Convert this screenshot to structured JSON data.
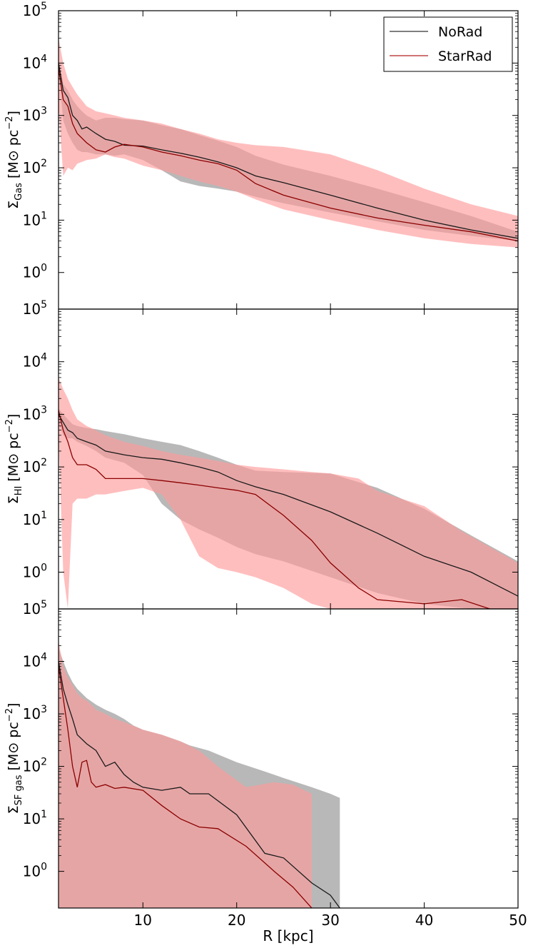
{
  "chart_data": {
    "type": "line",
    "xlabel": "R [kpc]",
    "xlim": [
      1,
      50
    ],
    "x_ticks": [
      10,
      20,
      30,
      40,
      50
    ],
    "y_scale": "log",
    "ylim": [
      0.2,
      100000
    ],
    "y_tick_base": "10",
    "y_tick_exponents": [
      "0",
      "1",
      "2",
      "3",
      "4",
      "5"
    ],
    "legend": {
      "location": "top-right",
      "entries": [
        {
          "label": "NoRad",
          "color": "#333333"
        },
        {
          "label": "StarRad",
          "color": "#b22222"
        }
      ]
    },
    "colors": {
      "norad_line": "#1a1a1a",
      "norad_band": "#b8b8b8",
      "starrad_line": "#8b0000",
      "starrad_band": "#ff9b9b",
      "overlap": "#cc8888"
    },
    "panels": [
      {
        "ylabel": {
          "symbol": "Σ",
          "sub": "Gas",
          "units": "[M",
          "sun": "⊙",
          "unit_tail": " pc",
          "exp": "−2",
          "close": "]"
        },
        "series": [
          {
            "name": "NoRad",
            "x": [
              1,
              1.5,
              2,
              2.5,
              3,
              3.5,
              4,
              5,
              6,
              7,
              8,
              10,
              12,
              14,
              16,
              18,
              20,
              22,
              25,
              30,
              35,
              40,
              45,
              50
            ],
            "y": [
              10000,
              3000,
              2200,
              1000,
              800,
              550,
              600,
              450,
              350,
              320,
              270,
              260,
              220,
              190,
              160,
              130,
              100,
              70,
              52,
              30,
              17,
              10,
              6.5,
              4.5
            ],
            "lo": [
              8000,
              800,
              450,
              300,
              220,
              200,
              200,
              180,
              180,
              170,
              180,
              140,
              90,
              55,
              45,
              40,
              35,
              28,
              21,
              14,
              9.5,
              6.5,
              5,
              4
            ],
            "hi": [
              12000,
              4000,
              3000,
              2000,
              1500,
              1200,
              1000,
              800,
              900,
              900,
              850,
              800,
              650,
              550,
              420,
              330,
              250,
              170,
              115,
              70,
              40,
              22,
              12,
              6
            ]
          },
          {
            "name": "StarRad",
            "x": [
              1,
              1.5,
              2,
              2.5,
              3,
              4,
              5,
              6,
              7,
              8,
              10,
              12,
              14,
              16,
              18,
              20,
              22,
              25,
              30,
              35,
              40,
              45,
              50
            ],
            "y": [
              8000,
              2000,
              1500,
              700,
              450,
              300,
              220,
              200,
              250,
              280,
              250,
              200,
              170,
              140,
              120,
              90,
              50,
              30,
              17,
              11,
              8,
              6,
              4
            ],
            "lo": [
              1500,
              70,
              100,
              90,
              120,
              140,
              150,
              180,
              160,
              150,
              110,
              90,
              70,
              55,
              45,
              35,
              25,
              16,
              10,
              6.5,
              4.5,
              3.5,
              3
            ],
            "hi": [
              30000,
              10000,
              5000,
              3500,
              2500,
              1500,
              1200,
              1100,
              1000,
              900,
              800,
              700,
              550,
              450,
              350,
              300,
              270,
              250,
              180,
              90,
              40,
              20,
              12
            ]
          }
        ]
      },
      {
        "ylabel": {
          "symbol": "Σ",
          "sub": "HI",
          "units": "[M",
          "sun": "⊙",
          "unit_tail": " pc",
          "exp": "−2",
          "close": "]"
        },
        "series": [
          {
            "name": "NoRad",
            "x": [
              1,
              1.5,
              2,
              2.5,
              3,
              4,
              5,
              6,
              8,
              10,
              12,
              14,
              16,
              18,
              20,
              22,
              25,
              30,
              35,
              40,
              45,
              50
            ],
            "y": [
              1000,
              700,
              500,
              450,
              350,
              300,
              260,
              200,
              170,
              150,
              140,
              120,
              100,
              80,
              55,
              42,
              30,
              14,
              5.5,
              2,
              1,
              0.35
            ],
            "lo": [
              700,
              400,
              350,
              350,
              300,
              250,
              200,
              150,
              120,
              70,
              20,
              10,
              6.5,
              4.5,
              3,
              2.2,
              1.6,
              0.8,
              0.4,
              0.25,
              0.2,
              0.2
            ],
            "hi": [
              1300,
              1000,
              800,
              650,
              600,
              550,
              520,
              480,
              420,
              350,
              300,
              260,
              200,
              150,
              110,
              85,
              80,
              75,
              40,
              16,
              5,
              1.6
            ]
          },
          {
            "name": "StarRad",
            "x": [
              1,
              1.5,
              2,
              2.5,
              3,
              4,
              5,
              6,
              8,
              10,
              12,
              14,
              16,
              18,
              20,
              22,
              25,
              28,
              30,
              33,
              35,
              40,
              44,
              47,
              50
            ],
            "y": [
              1200,
              500,
              300,
              150,
              110,
              110,
              90,
              60,
              60,
              60,
              55,
              50,
              45,
              40,
              36,
              30,
              12,
              4,
              1.5,
              0.5,
              0.3,
              0.25,
              0.3,
              0.2,
              0.15
            ],
            "lo": [
              400,
              1,
              0.2,
              20,
              25,
              25,
              30,
              30,
              35,
              40,
              30,
              10,
              2,
              1.2,
              1,
              0.8,
              0.5,
              0.25,
              0.2,
              0.2,
              0.2,
              0.2,
              0.2,
              0.2,
              0.2
            ],
            "hi": [
              5000,
              3000,
              2000,
              1200,
              800,
              600,
              500,
              400,
              300,
              250,
              200,
              170,
              150,
              130,
              110,
              100,
              90,
              80,
              75,
              60,
              35,
              18,
              6,
              3,
              1.5
            ]
          }
        ]
      },
      {
        "ylabel": {
          "symbol": "Σ",
          "sub": "SF gas",
          "units": "[M",
          "sun": "⊙",
          "unit_tail": " pc",
          "exp": "−2",
          "close": "]"
        },
        "series": [
          {
            "name": "NoRad",
            "x": [
              1,
              1.5,
              2,
              2.5,
              3,
              4,
              5,
              6,
              7,
              8,
              9,
              10,
              12,
              14,
              15,
              17,
              20,
              23,
              25,
              28,
              30,
              31
            ],
            "y": [
              10000,
              3000,
              1500,
              800,
              400,
              270,
              200,
              100,
              120,
              70,
              50,
              40,
              35,
              40,
              30,
              30,
              12,
              2.2,
              1.8,
              0.6,
              0.35,
              0.2
            ],
            "lo": [
              0.2,
              0.2,
              0.2,
              0.2,
              0.2,
              0.2,
              0.2,
              0.2,
              0.2,
              0.2,
              0.2,
              0.2,
              0.2,
              0.2,
              0.2,
              0.2,
              0.2,
              0.2,
              0.2,
              0.2,
              0.2,
              0.2
            ],
            "hi": [
              18000,
              10000,
              6000,
              4000,
              3000,
              2000,
              1500,
              1200,
              1000,
              800,
              600,
              500,
              400,
              300,
              250,
              200,
              120,
              80,
              60,
              40,
              30,
              25
            ]
          },
          {
            "name": "StarRad",
            "x": [
              1,
              1.5,
              2,
              2.5,
              3,
              3.5,
              4,
              4.5,
              5,
              6,
              7,
              8,
              10,
              12,
              14,
              16,
              18,
              21,
              24,
              26,
              28
            ],
            "y": [
              8000,
              2000,
              500,
              100,
              40,
              120,
              130,
              50,
              40,
              45,
              38,
              40,
              35,
              18,
              10,
              7,
              6.5,
              3,
              1,
              0.5,
              0.2
            ],
            "lo": [
              0.2,
              0.2,
              0.2,
              0.2,
              0.2,
              0.2,
              0.2,
              0.2,
              0.2,
              0.2,
              0.2,
              0.2,
              0.2,
              0.2,
              0.2,
              0.2,
              0.2,
              0.2,
              0.2,
              0.2,
              0.2
            ],
            "hi": [
              25000,
              8000,
              5000,
              3500,
              2500,
              2000,
              1800,
              1500,
              1200,
              1000,
              800,
              700,
              500,
              400,
              300,
              200,
              100,
              40,
              50,
              45,
              30
            ]
          }
        ]
      }
    ]
  }
}
